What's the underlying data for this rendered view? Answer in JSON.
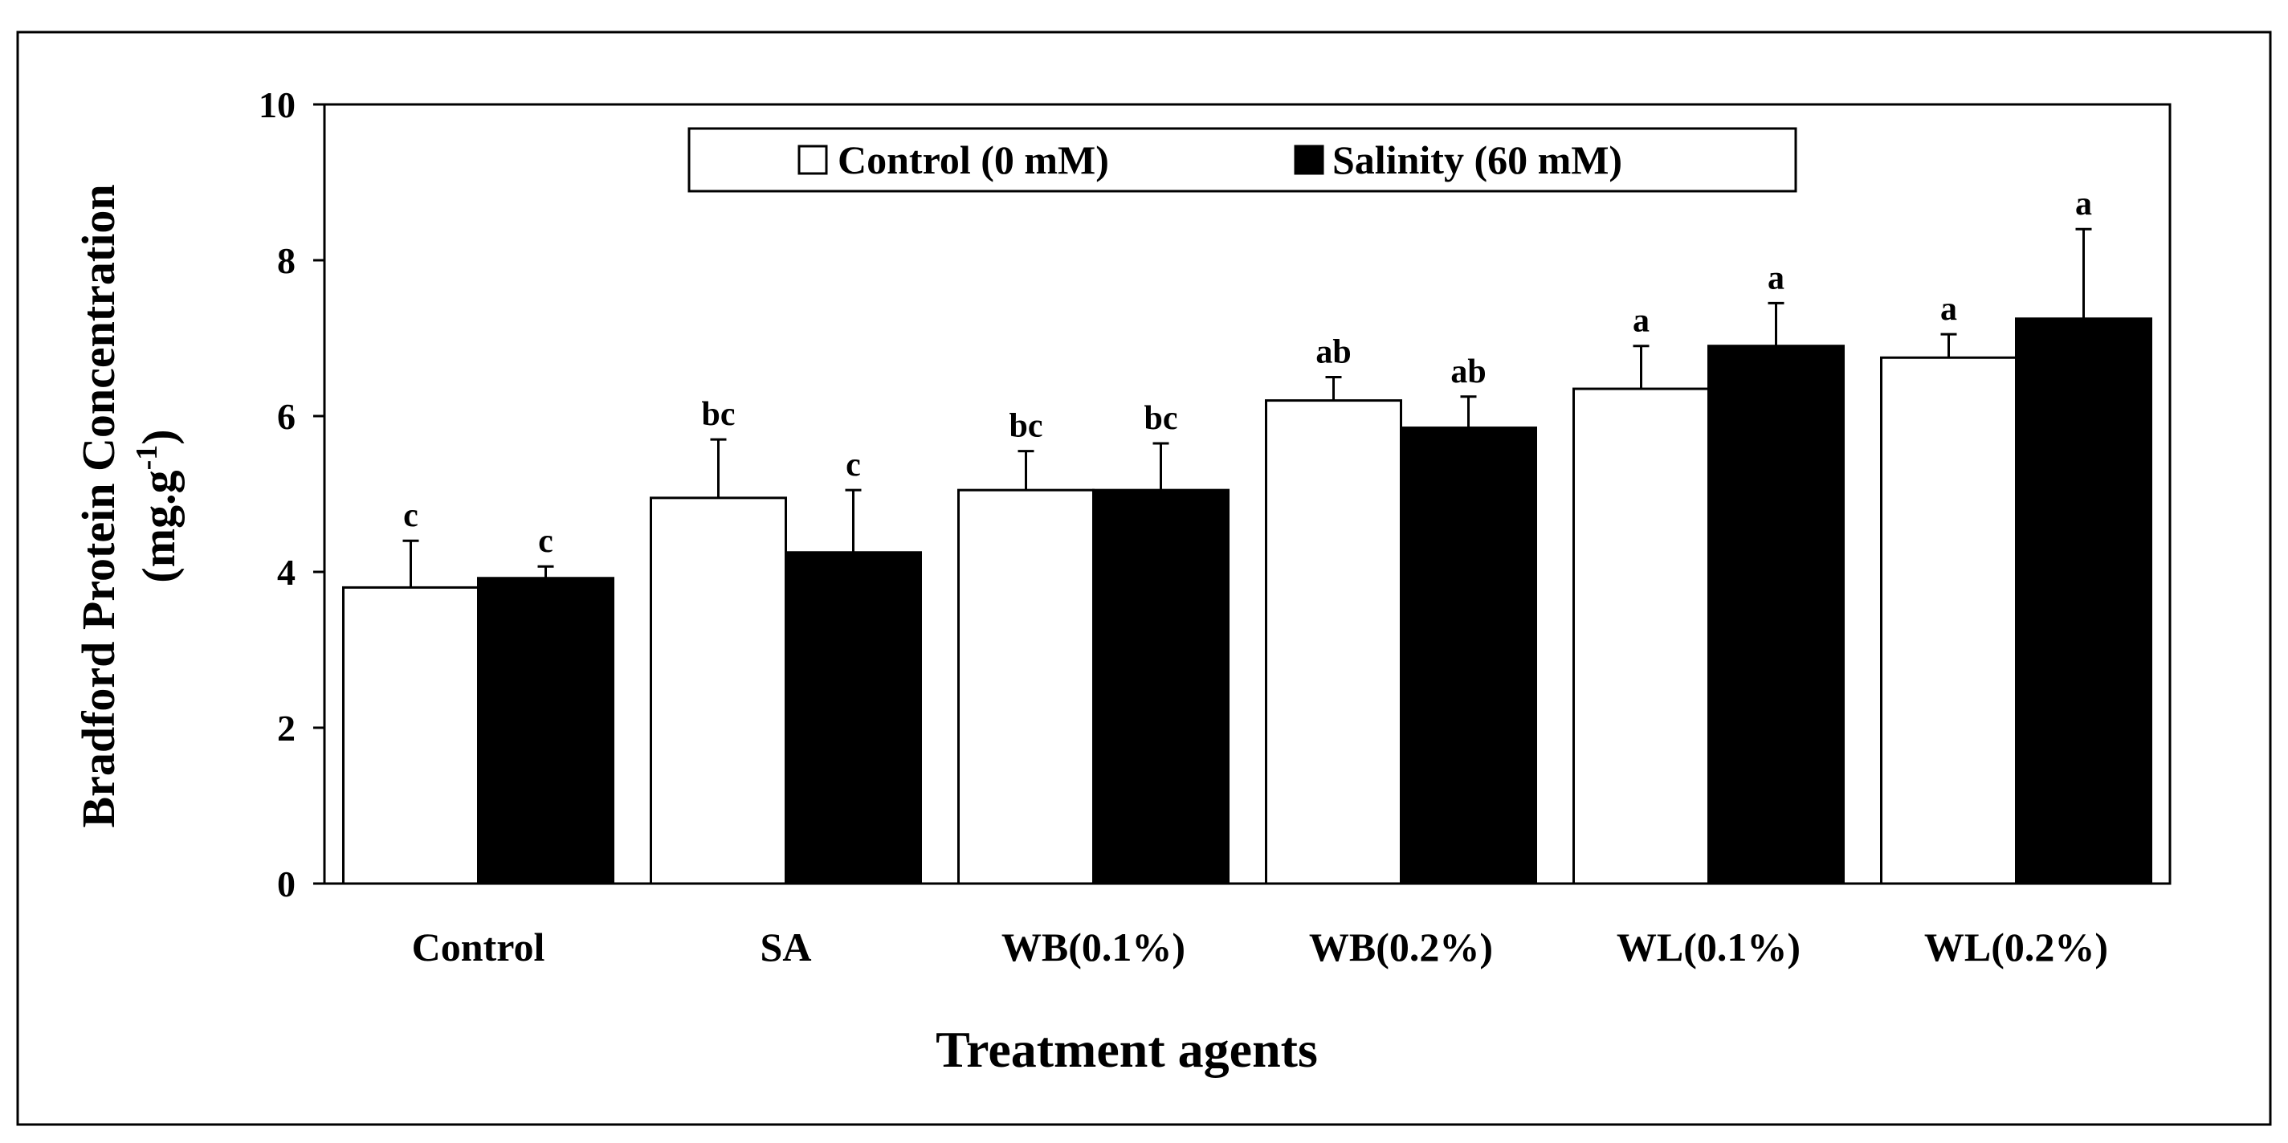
{
  "chart_data": {
    "type": "bar",
    "xlabel": "Treatment agents",
    "ylabel_line1": "Bradford Protein Concentration",
    "ylabel_line2": "(mg.g",
    "ylabel_sup": "-1",
    "ylabel_close": ")",
    "ylim": [
      0,
      10
    ],
    "yticks": [
      0,
      2,
      4,
      6,
      8,
      10
    ],
    "categories": [
      "Control",
      "SA",
      "WB(0.1%)",
      "WB(0.2%)",
      "WL(0.1%)",
      "WL(0.2%)"
    ],
    "series": [
      {
        "name": "Control (0 mM)",
        "color": "#ffffff",
        "values": [
          3.8,
          4.95,
          5.05,
          6.2,
          6.35,
          6.75
        ],
        "errors": [
          0.6,
          0.75,
          0.5,
          0.3,
          0.55,
          0.3
        ],
        "letters": [
          "c",
          "bc",
          "bc",
          "ab",
          "a",
          "a"
        ]
      },
      {
        "name": "Salinity (60 mM)",
        "color": "#000000",
        "values": [
          3.92,
          4.25,
          5.05,
          5.85,
          6.9,
          7.25
        ],
        "errors": [
          0.15,
          0.8,
          0.6,
          0.4,
          0.55,
          1.15
        ],
        "letters": [
          "c",
          "c",
          "bc",
          "ab",
          "a",
          "a"
        ]
      }
    ],
    "legend_position": "top-center",
    "grid": false
  }
}
